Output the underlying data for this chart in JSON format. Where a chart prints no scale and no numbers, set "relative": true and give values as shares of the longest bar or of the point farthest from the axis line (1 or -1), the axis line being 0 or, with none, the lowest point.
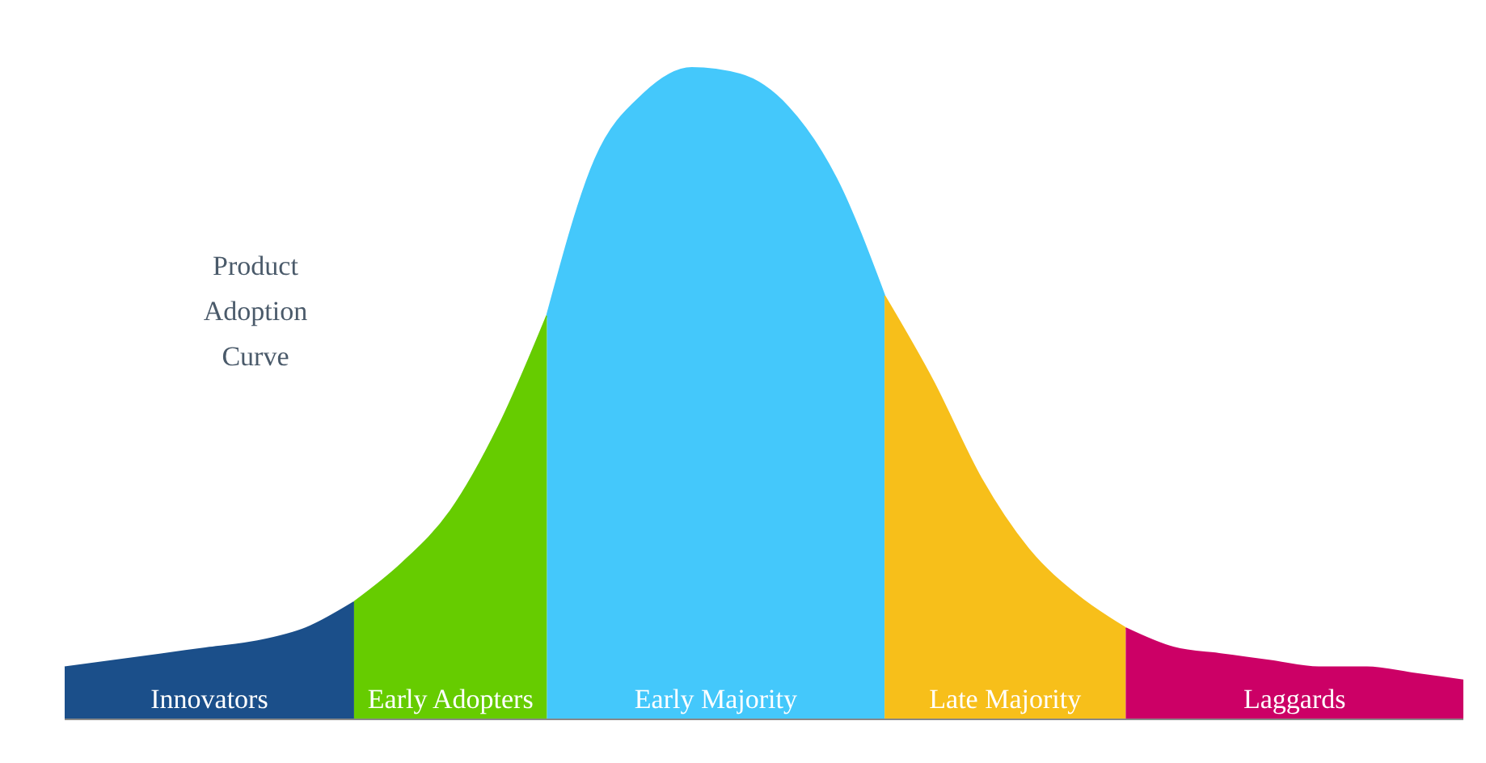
{
  "chart_data": {
    "type": "area",
    "title": "Product Adoption Curve",
    "relative": true,
    "categories": [
      null,
      null,
      null,
      null,
      null,
      null,
      null,
      null,
      null,
      null,
      null,
      null,
      null,
      null,
      null,
      null,
      null,
      null,
      null,
      null,
      null,
      null,
      null,
      null,
      null,
      null,
      null,
      null,
      null,
      null
    ],
    "series": [
      {
        "name": "Innovators",
        "color": "#1b4f8a",
        "values": [
          0.08,
          0.09,
          0.1,
          0.11,
          0.12,
          0.14,
          0.18,
          null,
          null,
          null,
          null,
          null,
          null,
          null,
          null,
          null,
          null,
          null,
          null,
          null,
          null,
          null,
          null,
          null,
          null,
          null,
          null,
          null,
          null,
          null
        ]
      },
      {
        "name": "Early Adopters",
        "color": "#66cc00",
        "values": [
          null,
          null,
          null,
          null,
          null,
          null,
          0.18,
          0.24,
          0.32,
          0.45,
          0.62,
          null,
          null,
          null,
          null,
          null,
          null,
          null,
          null,
          null,
          null,
          null,
          null,
          null,
          null,
          null,
          null,
          null,
          null,
          null
        ]
      },
      {
        "name": "Early Majority",
        "color": "#44c8fb",
        "values": [
          null,
          null,
          null,
          null,
          null,
          null,
          null,
          null,
          null,
          null,
          0.62,
          0.86,
          0.96,
          1,
          0.99,
          0.94,
          0.83,
          0.65,
          null,
          null,
          null,
          null,
          null,
          null,
          null,
          null,
          null,
          null,
          null,
          null
        ]
      },
      {
        "name": "Late Majority",
        "color": "#f7bf1a",
        "values": [
          null,
          null,
          null,
          null,
          null,
          null,
          null,
          null,
          null,
          null,
          null,
          null,
          null,
          null,
          null,
          null,
          null,
          0.65,
          0.52,
          0.37,
          0.26,
          0.19,
          0.14,
          null,
          null,
          null,
          null,
          null,
          null,
          null
        ]
      },
      {
        "name": "Laggards",
        "color": "#cc0066",
        "values": [
          null,
          null,
          null,
          null,
          null,
          null,
          null,
          null,
          null,
          null,
          null,
          null,
          null,
          null,
          null,
          null,
          null,
          null,
          null,
          null,
          null,
          null,
          0.14,
          0.11,
          0.1,
          0.09,
          0.08,
          0.08,
          0.07,
          0.06
        ]
      }
    ]
  }
}
